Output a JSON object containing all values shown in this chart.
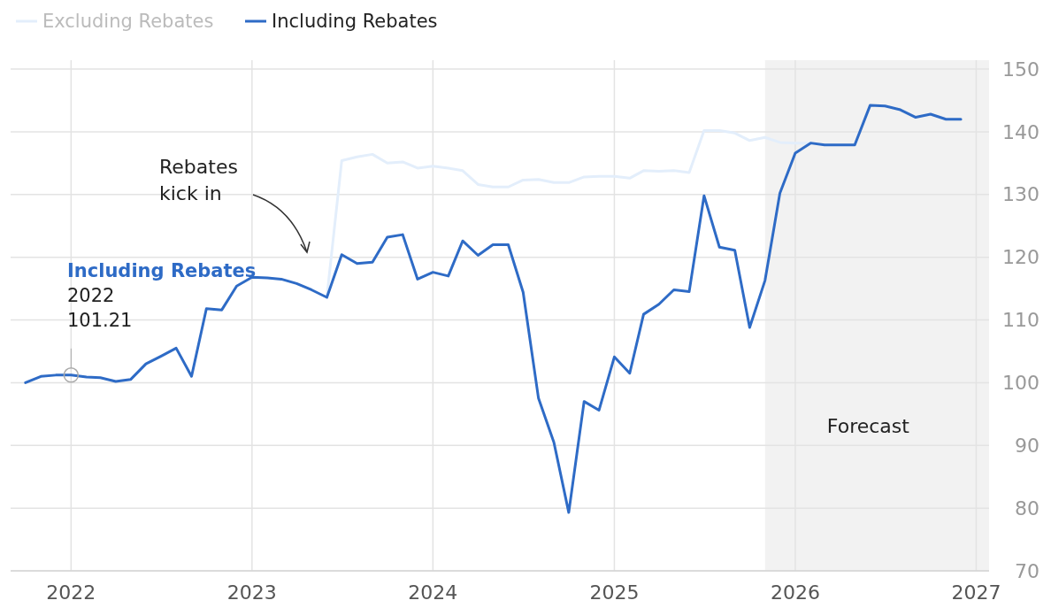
{
  "chart_data": {
    "type": "line",
    "x": [
      "2021-10",
      "2021-11",
      "2021-12",
      "2022-01",
      "2022-02",
      "2022-03",
      "2022-04",
      "2022-05",
      "2022-06",
      "2022-07",
      "2022-08",
      "2022-09",
      "2022-10",
      "2022-11",
      "2022-12",
      "2023-01",
      "2023-02",
      "2023-03",
      "2023-04",
      "2023-05",
      "2023-06",
      "2023-07",
      "2023-08",
      "2023-09",
      "2023-10",
      "2023-11",
      "2023-12",
      "2024-01",
      "2024-02",
      "2024-03",
      "2024-04",
      "2024-05",
      "2024-06",
      "2024-07",
      "2024-08",
      "2024-09",
      "2024-10",
      "2024-11",
      "2024-12",
      "2025-01",
      "2025-02",
      "2025-03",
      "2025-04",
      "2025-05",
      "2025-06",
      "2025-07",
      "2025-08",
      "2025-09",
      "2025-10",
      "2025-11",
      "2025-12",
      "2026-01",
      "2026-02",
      "2026-03",
      "2026-04",
      "2026-05",
      "2026-06",
      "2026-07",
      "2026-08",
      "2026-09",
      "2026-10",
      "2026-11",
      "2026-12"
    ],
    "series": [
      {
        "name": "Excluding Rebates",
        "color": "#e3eefb",
        "values": [
          null,
          null,
          null,
          null,
          null,
          null,
          null,
          null,
          null,
          null,
          null,
          null,
          null,
          null,
          null,
          null,
          null,
          null,
          null,
          null,
          113.6,
          135.4,
          136,
          136.4,
          135,
          135.2,
          134.2,
          134.5,
          134.2,
          133.8,
          131.6,
          131.2,
          131.2,
          132.3,
          132.4,
          131.9,
          131.9,
          132.8,
          132.9,
          132.9,
          132.6,
          133.8,
          133.7,
          133.8,
          133.5,
          140.2,
          140.2,
          139.8,
          138.6,
          139.1,
          138.3,
          138.2,
          138.2,
          null,
          null,
          null,
          null,
          null,
          null,
          null,
          null,
          null,
          null
        ]
      },
      {
        "name": "Including Rebates",
        "color": "#2e6bc6",
        "values": [
          100,
          101,
          101.2,
          101.21,
          100.9,
          100.8,
          100.2,
          100.5,
          103,
          104.2,
          105.5,
          101,
          111.8,
          111.6,
          115.4,
          116.8,
          116.7,
          116.5,
          115.8,
          114.8,
          113.6,
          120.4,
          119,
          119.2,
          123.2,
          123.6,
          116.5,
          117.6,
          117,
          122.6,
          120.3,
          122,
          122,
          114.4,
          97.5,
          90.5,
          79.3,
          97,
          95.6,
          104.1,
          101.5,
          110.9,
          112.5,
          114.8,
          114.5,
          129.8,
          121.6,
          121.1,
          108.8,
          116.3,
          130.2,
          136.6,
          138.2,
          137.9,
          137.9,
          137.9,
          144.2,
          144.1,
          143.5,
          142.3,
          142.8,
          142,
          142
        ]
      }
    ],
    "xlim": [
      "2021-09",
      "2027-01-27"
    ],
    "xticks": [
      "2022",
      "2023",
      "2024",
      "2025",
      "2026",
      "2027"
    ],
    "ylim": [
      70,
      150
    ],
    "yticks": [
      70,
      80,
      90,
      100,
      110,
      120,
      130,
      140,
      150
    ],
    "grid": true,
    "legend": "top left",
    "marker": "none",
    "bands": [
      {
        "axis": "x",
        "from": "2025-11",
        "to": "2027-01-27",
        "label": "Forecast",
        "color": "#f2f2f2"
      }
    ],
    "annotations": [
      {
        "text": "Including Rebates\n2022\n101.21",
        "x": "2022-01",
        "y": 101.21
      },
      "Rebates\nkick in"
    ]
  }
}
